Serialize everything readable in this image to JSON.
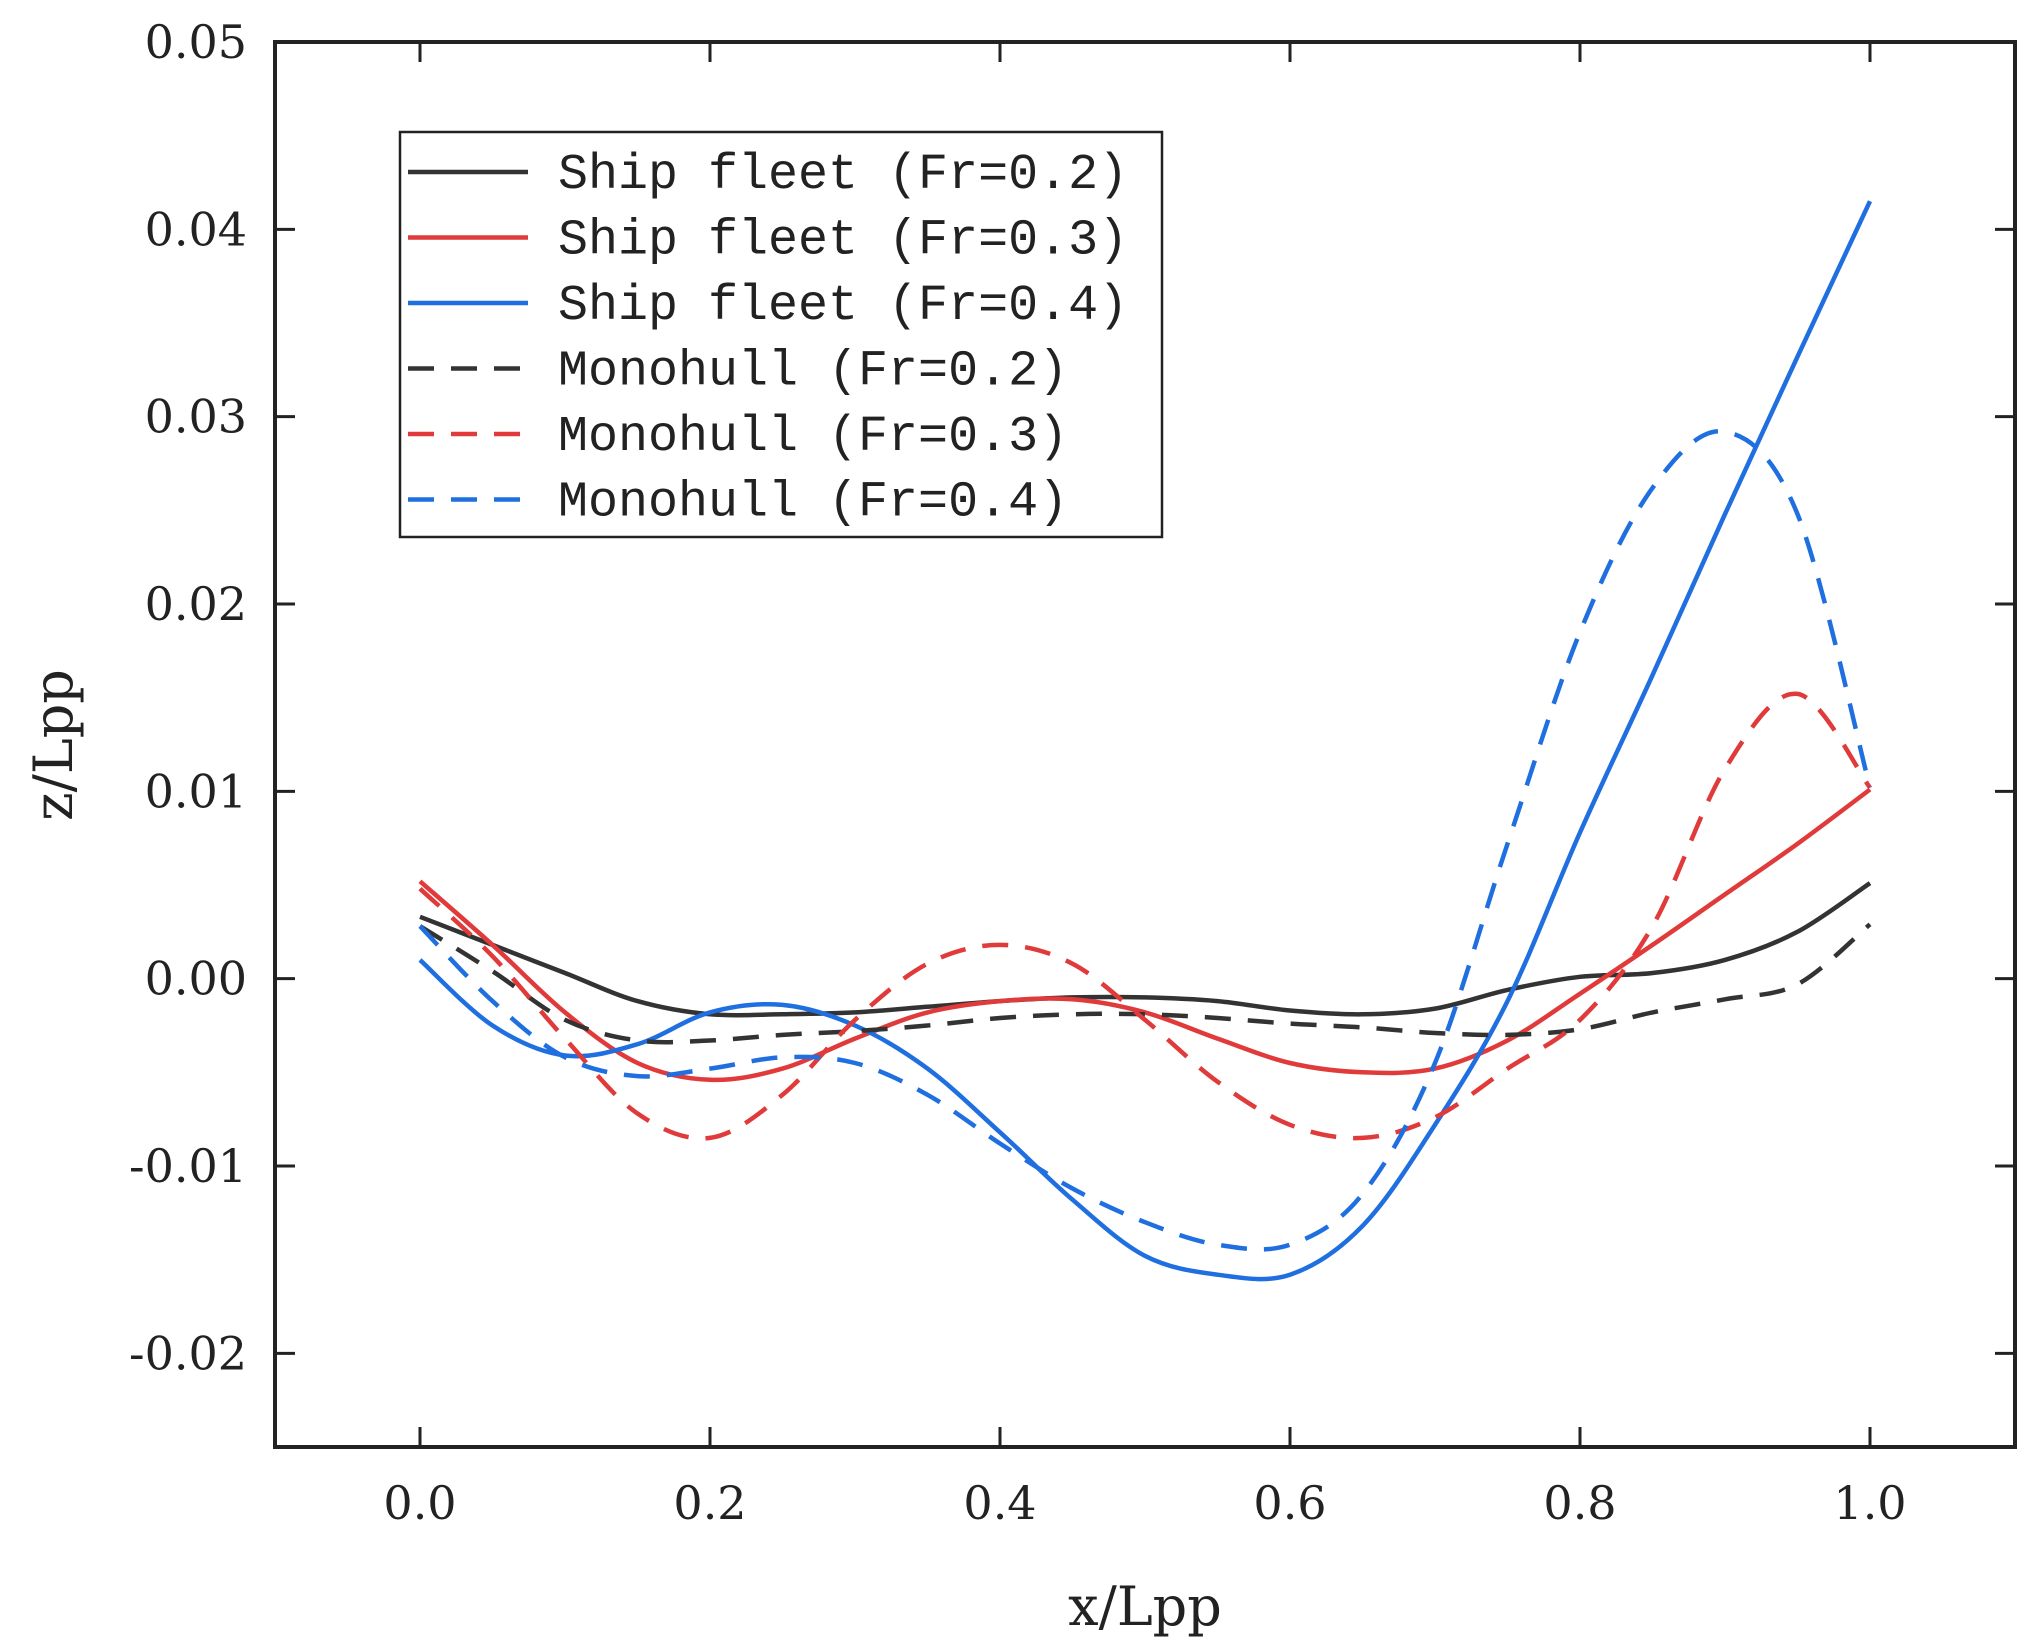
{
  "chart_data": {
    "type": "line",
    "title": "",
    "xlabel": "x/Lpp",
    "ylabel": "z/Lpp",
    "xlim": [
      -0.1,
      1.1
    ],
    "ylim": [
      -0.025,
      0.05
    ],
    "xticks": [
      0.0,
      0.2,
      0.4,
      0.6,
      0.8,
      1.0
    ],
    "xtick_labels": [
      "0.0",
      "0.2",
      "0.4",
      "0.6",
      "0.8",
      "1.0"
    ],
    "yticks": [
      -0.02,
      -0.01,
      0.0,
      0.01,
      0.02,
      0.03,
      0.04,
      0.05
    ],
    "ytick_labels": [
      "-0.02",
      "-0.01",
      "0.00",
      "0.01",
      "0.02",
      "0.03",
      "0.04",
      "0.05"
    ],
    "legend_position": "top-left",
    "grid": false,
    "series": [
      {
        "name": "Ship fleet (Fr=0.2)",
        "color": "#333333",
        "dash": "solid",
        "x": [
          0.0,
          0.05,
          0.1,
          0.15,
          0.2,
          0.25,
          0.3,
          0.35,
          0.4,
          0.45,
          0.5,
          0.55,
          0.6,
          0.65,
          0.7,
          0.75,
          0.8,
          0.85,
          0.9,
          0.95,
          1.0
        ],
        "y": [
          0.0033,
          0.0018,
          0.0003,
          -0.0012,
          -0.0019,
          -0.0019,
          -0.0018,
          -0.0015,
          -0.0012,
          -0.001,
          -0.001,
          -0.0012,
          -0.0017,
          -0.0019,
          -0.0016,
          -0.0006,
          0.0001,
          0.0003,
          0.001,
          0.0025,
          0.0051
        ]
      },
      {
        "name": "Ship fleet (Fr=0.3)",
        "color": "#e03a3a",
        "dash": "solid",
        "x": [
          0.0,
          0.05,
          0.1,
          0.15,
          0.2,
          0.25,
          0.3,
          0.35,
          0.4,
          0.45,
          0.5,
          0.55,
          0.6,
          0.65,
          0.7,
          0.75,
          0.8,
          0.85,
          0.9,
          0.95,
          1.0
        ],
        "y": [
          0.0052,
          0.0018,
          -0.0018,
          -0.0045,
          -0.0054,
          -0.0048,
          -0.0032,
          -0.0018,
          -0.0012,
          -0.0011,
          -0.0018,
          -0.0032,
          -0.0045,
          -0.005,
          -0.0048,
          -0.0033,
          -0.0008,
          0.0018,
          0.0045,
          0.0072,
          0.0101
        ]
      },
      {
        "name": "Ship fleet (Fr=0.4)",
        "color": "#1f6fe0",
        "dash": "solid",
        "x": [
          0.0,
          0.05,
          0.1,
          0.15,
          0.2,
          0.25,
          0.3,
          0.35,
          0.4,
          0.45,
          0.5,
          0.55,
          0.6,
          0.65,
          0.7,
          0.75,
          0.8,
          0.85,
          0.9,
          0.95,
          1.0
        ],
        "y": [
          0.001,
          -0.0025,
          -0.0041,
          -0.0035,
          -0.0018,
          -0.0014,
          -0.0025,
          -0.0048,
          -0.0082,
          -0.0118,
          -0.0148,
          -0.0158,
          -0.0158,
          -0.0132,
          -0.0078,
          -0.0012,
          0.0078,
          0.0162,
          0.0248,
          0.0332,
          0.0415
        ]
      },
      {
        "name": "Monohull (Fr=0.2)",
        "color": "#333333",
        "dash": "dashed",
        "x": [
          0.0,
          0.05,
          0.1,
          0.15,
          0.2,
          0.25,
          0.3,
          0.35,
          0.4,
          0.45,
          0.5,
          0.55,
          0.6,
          0.65,
          0.7,
          0.75,
          0.8,
          0.85,
          0.9,
          0.95,
          1.0
        ],
        "y": [
          0.0028,
          0.0004,
          -0.0022,
          -0.0033,
          -0.0033,
          -0.003,
          -0.0028,
          -0.0025,
          -0.0021,
          -0.0019,
          -0.0019,
          -0.0021,
          -0.0024,
          -0.0026,
          -0.0029,
          -0.003,
          -0.0027,
          -0.0018,
          -0.0011,
          -0.0003,
          0.0029
        ]
      },
      {
        "name": "Monohull (Fr=0.3)",
        "color": "#e03a3a",
        "dash": "dashed",
        "x": [
          0.0,
          0.05,
          0.1,
          0.15,
          0.2,
          0.25,
          0.3,
          0.35,
          0.4,
          0.45,
          0.5,
          0.55,
          0.6,
          0.65,
          0.7,
          0.75,
          0.8,
          0.85,
          0.9,
          0.95,
          1.0
        ],
        "y": [
          0.0048,
          0.0012,
          -0.0032,
          -0.0072,
          -0.0085,
          -0.0062,
          -0.0022,
          0.0008,
          0.0018,
          0.0008,
          -0.0022,
          -0.0055,
          -0.0078,
          -0.0085,
          -0.0074,
          -0.0048,
          -0.0022,
          0.0028,
          0.0112,
          0.0152,
          0.0102
        ]
      },
      {
        "name": "Monohull (Fr=0.4)",
        "color": "#1f6fe0",
        "dash": "dashed",
        "x": [
          0.0,
          0.05,
          0.1,
          0.15,
          0.2,
          0.25,
          0.3,
          0.35,
          0.4,
          0.45,
          0.5,
          0.55,
          0.6,
          0.65,
          0.7,
          0.75,
          0.8,
          0.85,
          0.9,
          0.95,
          1.0
        ],
        "y": [
          0.0028,
          -0.0012,
          -0.0042,
          -0.0052,
          -0.0048,
          -0.0042,
          -0.0045,
          -0.0062,
          -0.0088,
          -0.0112,
          -0.013,
          -0.0142,
          -0.0142,
          -0.0115,
          -0.0045,
          0.0072,
          0.0185,
          0.0262,
          0.0292,
          0.0248,
          0.0102
        ]
      }
    ]
  }
}
